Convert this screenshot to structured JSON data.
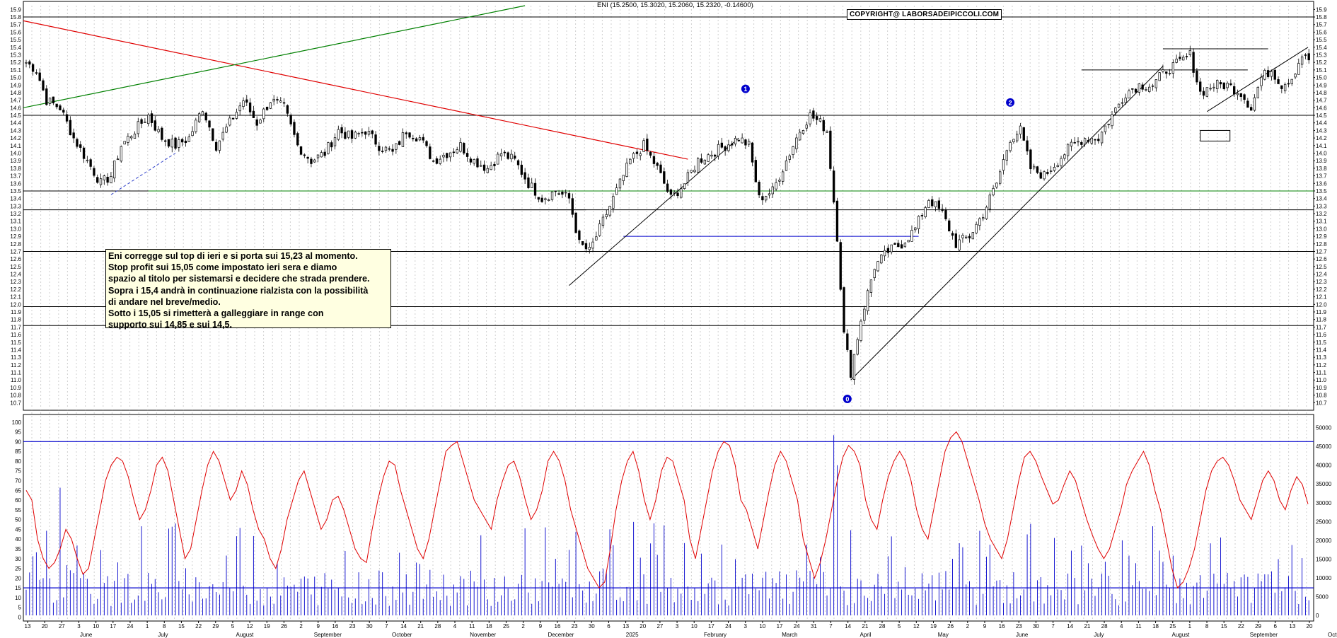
{
  "header": "ENI (15.2500, 15.3020, 15.2060, 15.2320, -0.14600)",
  "copyright": "COPYRIGHT@ LABORSADEIPICCOLI.COM",
  "commentary": [
    "Eni corregge sul top di ieri e si porta sui 15,23 al momento.",
    "Stop profit sui 15,05 come impostato ieri sera e diamo",
    "spazio al titolo per sistemarsi e decidere che strada prendere.",
    "Sopra i 15,4 andrà in continuazione rialzista con la possibilità",
    "di andare nel breve/medio.",
    "Sotto i 15,05 si rimetterà a galleggiare  in range con",
    "supporto sui 14,85 e sui 14,5."
  ],
  "wave_labels": [
    "1",
    "2",
    "0"
  ],
  "colors": {
    "candle": "#000000",
    "resistance": "#000000",
    "downtrend": "#e00000",
    "uptrend": "#008000",
    "support_green": "#008000",
    "oscillator": "#e00000",
    "volume": "#0000cc",
    "note_bg": "#ffffe1"
  },
  "chart_data": [
    {
      "type": "candlestick",
      "title": "ENI",
      "y_ticks": [
        "10.7",
        "10.8",
        "10.9",
        "11.0",
        "11.1",
        "11.2",
        "11.3",
        "11.4",
        "11.5",
        "11.6",
        "11.7",
        "11.8",
        "11.9",
        "12.0",
        "12.1",
        "12.2",
        "12.3",
        "12.4",
        "12.5",
        "12.6",
        "12.7",
        "12.8",
        "12.9",
        "13.0",
        "13.1",
        "13.2",
        "13.3",
        "13.4",
        "13.5",
        "13.6",
        "13.7",
        "13.8",
        "13.9",
        "14.0",
        "14.1",
        "14.2",
        "14.3",
        "14.4",
        "14.5",
        "14.6",
        "14.7",
        "14.8",
        "14.9",
        "15.0",
        "15.1",
        "15.2",
        "15.3",
        "15.4",
        "15.5",
        "15.6",
        "15.7",
        "15.8",
        "15.9"
      ],
      "ylim": [
        10.6,
        15.95
      ],
      "horizontal_levels": [
        15.8,
        14.5,
        13.5,
        13.25,
        12.7,
        11.97,
        11.72
      ],
      "last": {
        "open": 15.25,
        "high": 15.302,
        "low": 15.206,
        "close": 15.232,
        "change": -0.146
      },
      "anchors": [
        [
          0,
          15.2
        ],
        [
          3,
          15.1
        ],
        [
          6,
          14.7
        ],
        [
          10,
          14.6
        ],
        [
          14,
          14.2
        ],
        [
          18,
          13.9
        ],
        [
          22,
          13.6
        ],
        [
          25,
          13.7
        ],
        [
          28,
          14.1
        ],
        [
          32,
          14.3
        ],
        [
          36,
          14.5
        ],
        [
          40,
          14.2
        ],
        [
          44,
          14.1
        ],
        [
          48,
          14.2
        ],
        [
          52,
          14.6
        ],
        [
          56,
          14.1
        ],
        [
          60,
          14.4
        ],
        [
          64,
          14.7
        ],
        [
          68,
          14.4
        ],
        [
          72,
          14.7
        ],
        [
          76,
          14.6
        ],
        [
          80,
          14.1
        ],
        [
          84,
          13.9
        ],
        [
          88,
          14.0
        ],
        [
          92,
          14.3
        ],
        [
          96,
          14.2
        ],
        [
          100,
          14.3
        ],
        [
          104,
          14.1
        ],
        [
          108,
          14.0
        ],
        [
          112,
          14.3
        ],
        [
          116,
          14.2
        ],
        [
          120,
          13.9
        ],
        [
          124,
          14.0
        ],
        [
          128,
          14.1
        ],
        [
          132,
          13.9
        ],
        [
          136,
          13.8
        ],
        [
          140,
          14.0
        ],
        [
          144,
          13.9
        ],
        [
          148,
          13.6
        ],
        [
          152,
          13.4
        ],
        [
          156,
          13.5
        ],
        [
          160,
          13.4
        ],
        [
          163,
          12.8
        ],
        [
          166,
          12.7
        ],
        [
          170,
          13.1
        ],
        [
          174,
          13.5
        ],
        [
          178,
          13.9
        ],
        [
          182,
          14.1
        ],
        [
          186,
          13.8
        ],
        [
          190,
          13.4
        ],
        [
          194,
          13.6
        ],
        [
          198,
          13.9
        ],
        [
          202,
          14.0
        ],
        [
          206,
          14.1
        ],
        [
          210,
          14.2
        ],
        [
          213,
          14.1
        ],
        [
          216,
          13.4
        ],
        [
          220,
          13.5
        ],
        [
          224,
          13.9
        ],
        [
          228,
          14.3
        ],
        [
          231,
          14.5
        ],
        [
          234,
          14.4
        ],
        [
          236,
          14.3
        ],
        [
          239,
          12.9
        ],
        [
          241,
          11.6
        ],
        [
          243,
          11.1
        ],
        [
          246,
          11.8
        ],
        [
          250,
          12.5
        ],
        [
          254,
          12.7
        ],
        [
          258,
          12.8
        ],
        [
          262,
          13.0
        ],
        [
          266,
          13.4
        ],
        [
          270,
          13.2
        ],
        [
          274,
          12.8
        ],
        [
          278,
          12.9
        ],
        [
          282,
          13.2
        ],
        [
          286,
          13.6
        ],
        [
          290,
          14.2
        ],
        [
          293,
          14.3
        ],
        [
          296,
          13.8
        ],
        [
          300,
          13.7
        ],
        [
          304,
          13.9
        ],
        [
          308,
          14.1
        ],
        [
          312,
          14.2
        ],
        [
          316,
          14.2
        ],
        [
          320,
          14.5
        ],
        [
          324,
          14.8
        ],
        [
          328,
          14.9
        ],
        [
          332,
          14.9
        ],
        [
          336,
          15.1
        ],
        [
          340,
          15.2
        ],
        [
          343,
          15.3
        ],
        [
          346,
          14.8
        ],
        [
          350,
          14.9
        ],
        [
          354,
          14.9
        ],
        [
          358,
          14.8
        ],
        [
          361,
          14.6
        ],
        [
          364,
          15.0
        ],
        [
          367,
          15.1
        ],
        [
          370,
          14.9
        ],
        [
          373,
          15.0
        ],
        [
          376,
          15.3
        ],
        [
          378,
          15.2
        ]
      ],
      "x_day_ticks": [
        "13",
        "20",
        "27",
        "3",
        "10",
        "17",
        "24",
        "1",
        "8",
        "15",
        "22",
        "29",
        "5",
        "12",
        "19",
        "26",
        "2",
        "9",
        "16",
        "23",
        "30",
        "7",
        "14",
        "21",
        "28",
        "4",
        "11",
        "18",
        "25",
        "2",
        "9",
        "16",
        "23",
        "30",
        "6",
        "13",
        "20",
        "27",
        "3",
        "10",
        "17",
        "24",
        "3",
        "10",
        "17",
        "24",
        "31",
        "7",
        "14",
        "21",
        "28",
        "5",
        "12",
        "19",
        "26",
        "2",
        "9",
        "16",
        "23",
        "30",
        "7",
        "14",
        "21",
        "28",
        "4",
        "11",
        "18",
        "25",
        "1",
        "8",
        "15",
        "22",
        "29",
        "6",
        "13",
        "20"
      ],
      "x_month_ticks": [
        "June",
        "July",
        "August",
        "September",
        "October",
        "November",
        "December",
        "2025",
        "February",
        "March",
        "April",
        "May",
        "June",
        "July",
        "August",
        "September",
        "October"
      ]
    },
    {
      "type": "line",
      "series": [
        {
          "values": [
            65,
            60,
            40,
            30,
            25,
            28,
            35,
            45,
            40,
            30,
            22,
            25,
            40,
            55,
            70,
            78,
            82,
            80,
            72,
            60,
            50,
            55,
            65,
            78,
            82,
            75,
            60,
            45,
            30,
            35,
            50,
            65,
            78,
            85,
            80,
            70,
            60,
            65,
            75,
            68,
            55,
            45,
            40,
            30,
            25,
            35,
            50,
            60,
            70,
            75,
            65,
            55,
            45,
            50,
            60,
            62,
            55,
            45,
            35,
            30,
            28,
            45,
            60,
            72,
            80,
            78,
            65,
            55,
            45,
            35,
            30,
            40,
            55,
            70,
            85,
            88,
            90,
            80,
            70,
            60,
            55,
            50,
            45,
            60,
            70,
            78,
            80,
            72,
            60,
            50,
            55,
            65,
            80,
            85,
            80,
            70,
            55,
            45,
            35,
            25,
            20,
            15,
            18,
            35,
            55,
            70,
            80,
            85,
            75,
            60,
            50,
            60,
            75,
            82,
            80,
            70,
            60,
            40,
            30,
            45,
            60,
            75,
            85,
            90,
            88,
            78,
            60,
            55,
            45,
            35,
            50,
            65,
            78,
            85,
            80,
            70,
            60,
            40,
            30,
            20,
            28,
            40,
            55,
            70,
            82,
            88,
            85,
            78,
            60,
            50,
            45,
            60,
            72,
            80,
            85,
            80,
            70,
            55,
            45,
            40,
            55,
            70,
            85,
            92,
            95,
            90,
            80,
            70,
            60,
            48,
            40,
            35,
            30,
            40,
            55,
            70,
            82,
            85,
            80,
            72,
            65,
            58,
            60,
            68,
            75,
            70,
            60,
            50,
            42,
            35,
            30,
            35,
            45,
            55,
            68,
            75,
            80,
            85,
            78,
            65,
            55,
            40,
            25,
            15,
            18,
            25,
            35,
            50,
            65,
            75,
            80,
            82,
            78,
            70,
            60,
            55,
            50,
            60,
            70,
            75,
            70,
            60,
            55,
            65,
            72,
            68,
            58
          ]
        }
      ],
      "y_ticks": [
        "100",
        "95",
        "90",
        "85",
        "80",
        "75",
        "70",
        "65",
        "60",
        "55",
        "50",
        "45",
        "40",
        "35",
        "30",
        "25",
        "20",
        "15",
        "10",
        "5",
        "0"
      ],
      "ylim": [
        -2,
        101
      ],
      "horizontal_levels": [
        90,
        15
      ]
    },
    {
      "type": "bar",
      "name": "volume",
      "y_ticks": [
        "50000",
        "45000",
        "40000",
        "35000",
        "30000",
        "25000",
        "20000",
        "15000",
        "10000",
        "5000",
        "0"
      ],
      "ylim": [
        -1500,
        52000
      ]
    }
  ]
}
